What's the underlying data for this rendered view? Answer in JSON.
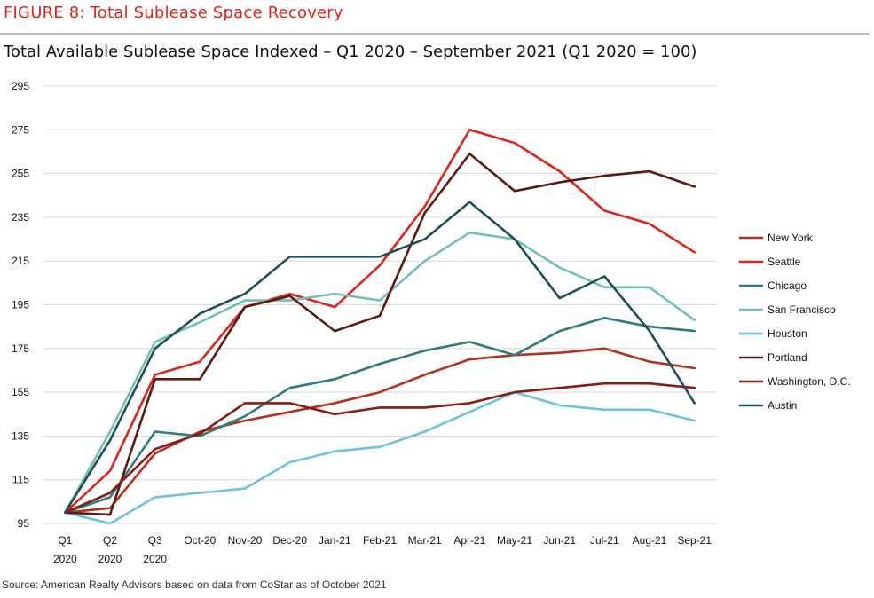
{
  "figure_label": "FIGURE 8: Total Sublease Space Recovery",
  "source": "Source: American Realty Advisors based on data from CoStar as of October 2021",
  "chart_data": {
    "type": "line",
    "title": "Total Available Sublease Space Indexed – Q1 2020 – September 2021 (Q1 2020 = 100)",
    "categories": [
      [
        "Q1",
        "2020"
      ],
      [
        "Q2",
        "2020"
      ],
      [
        "Q3",
        "2020"
      ],
      [
        "Oct-20"
      ],
      [
        "Nov-20"
      ],
      [
        "Dec-20"
      ],
      [
        "Jan-21"
      ],
      [
        "Feb-21"
      ],
      [
        "Mar-21"
      ],
      [
        "Apr-21"
      ],
      [
        "May-21"
      ],
      [
        "Jun-21"
      ],
      [
        "Jul-21"
      ],
      [
        "Aug-21"
      ],
      [
        "Sep-21"
      ]
    ],
    "ylim": [
      95,
      295
    ],
    "yticks": [
      95,
      115,
      135,
      155,
      175,
      195,
      215,
      235,
      255,
      275,
      295
    ],
    "grid": true,
    "legend_position": "right",
    "series": [
      {
        "name": "New York",
        "color": "#b5301d",
        "values": [
          100,
          102,
          127,
          137,
          142,
          146,
          150,
          155,
          163,
          170,
          172,
          173,
          175,
          169,
          166
        ]
      },
      {
        "name": "Seattle",
        "color": "#e0231b",
        "values": [
          100,
          119,
          163,
          169,
          194,
          200,
          194,
          213,
          240,
          275,
          269,
          256,
          238,
          232,
          219
        ]
      },
      {
        "name": "Chicago",
        "color": "#2a7f7a",
        "values": [
          100,
          107,
          137,
          135,
          144,
          157,
          161,
          168,
          174,
          178,
          172,
          183,
          189,
          185,
          183
        ]
      },
      {
        "name": "San Francisco",
        "color": "#6fc2ac",
        "values": [
          100,
          137,
          178,
          187,
          197,
          197,
          200,
          197,
          215,
          228,
          225,
          212,
          203,
          203,
          188
        ]
      },
      {
        "name": "Houston",
        "color": "#6cc2e0",
        "values": [
          100,
          95,
          107,
          109,
          111,
          123,
          128,
          130,
          137,
          146,
          155,
          149,
          147,
          147,
          142
        ]
      },
      {
        "name": "Portland",
        "color": "#5a1a10",
        "values": [
          100,
          99,
          161,
          161,
          194,
          199,
          183,
          190,
          237,
          264,
          247,
          251,
          254,
          256,
          249
        ]
      },
      {
        "name": "Washington, D.C.",
        "color": "#8b1c14",
        "values": [
          100,
          109,
          129,
          136,
          150,
          150,
          145,
          148,
          148,
          150,
          155,
          157,
          159,
          159,
          157
        ]
      },
      {
        "name": "Austin",
        "color": "#1d4f57",
        "values": [
          100,
          133,
          175,
          191,
          200,
          217,
          217,
          217,
          225,
          242,
          225,
          198,
          208,
          183,
          150
        ]
      }
    ]
  }
}
